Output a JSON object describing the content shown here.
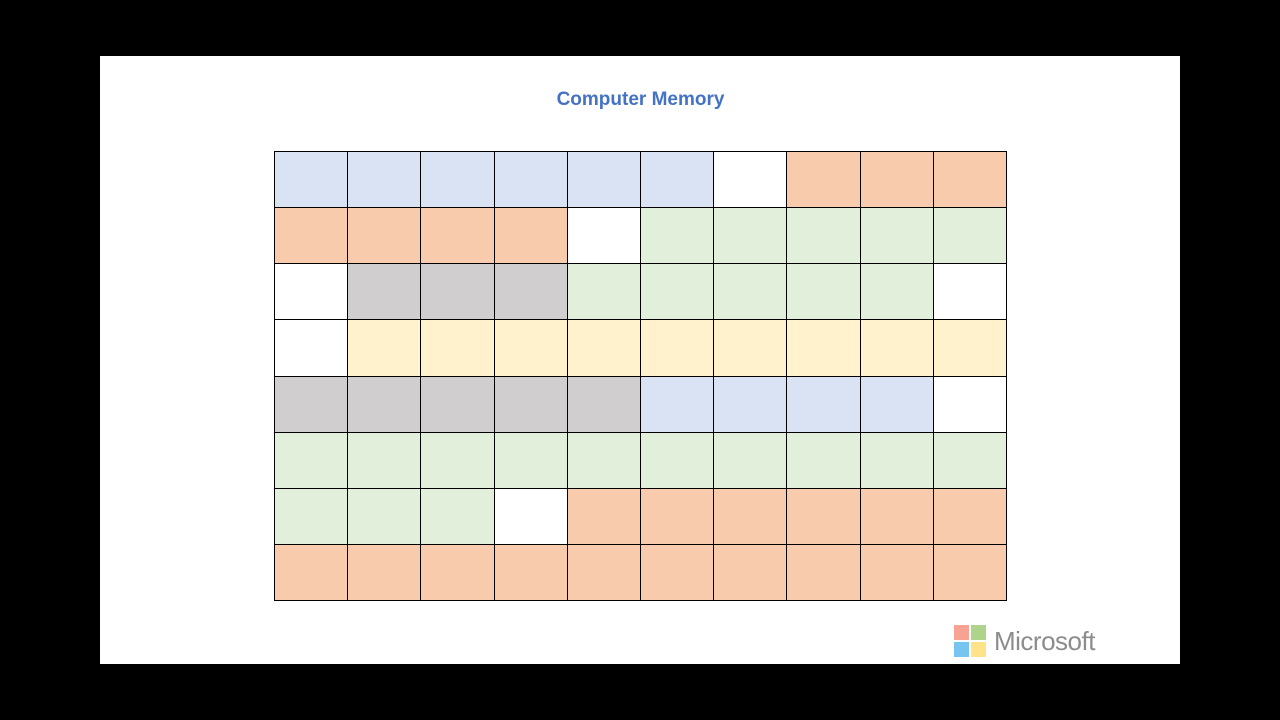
{
  "slide": {
    "title": "Computer Memory"
  },
  "memory": {
    "columns": 10,
    "palette": {
      "blue": "#dae3f3",
      "orange": "#f8cbad",
      "green": "#e2efda",
      "gray": "#d0cece",
      "yellow": "#fff2cc",
      "empty": "#ffffff"
    },
    "rows": [
      [
        "blue",
        "blue",
        "blue",
        "blue",
        "blue",
        "blue",
        "empty",
        "orange",
        "orange",
        "orange"
      ],
      [
        "orange",
        "orange",
        "orange",
        "orange",
        "empty",
        "green",
        "green",
        "green",
        "green",
        "green"
      ],
      [
        "empty",
        "gray",
        "gray",
        "gray",
        "green",
        "green",
        "green",
        "green",
        "green",
        "empty"
      ],
      [
        "empty",
        "yellow",
        "yellow",
        "yellow",
        "yellow",
        "yellow",
        "yellow",
        "yellow",
        "yellow",
        "yellow"
      ],
      [
        "gray",
        "gray",
        "gray",
        "gray",
        "gray",
        "blue",
        "blue",
        "blue",
        "blue",
        "empty"
      ],
      [
        "green",
        "green",
        "green",
        "green",
        "green",
        "green",
        "green",
        "green",
        "green",
        "green"
      ],
      [
        "green",
        "green",
        "green",
        "empty",
        "orange",
        "orange",
        "orange",
        "orange",
        "orange",
        "orange"
      ],
      [
        "orange",
        "orange",
        "orange",
        "orange",
        "orange",
        "orange",
        "orange",
        "orange",
        "orange",
        "orange"
      ]
    ]
  },
  "brand": {
    "name": "Microsoft",
    "logo_colors": [
      "#f7a293",
      "#aed38b",
      "#75c5f0",
      "#ffe38a"
    ]
  }
}
